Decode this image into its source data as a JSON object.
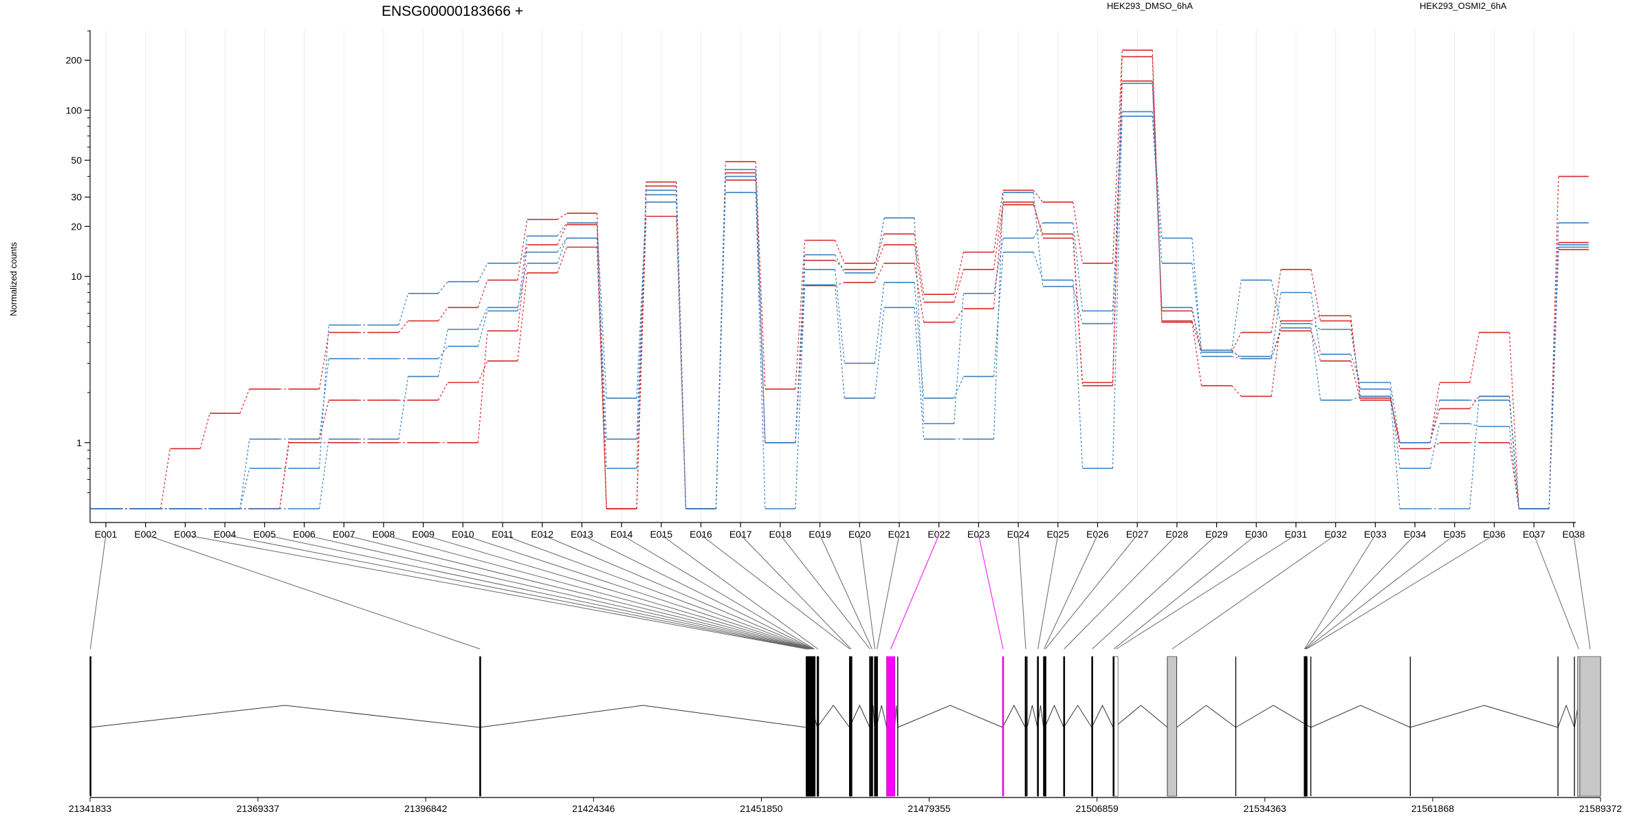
{
  "chart_data": {
    "type": "line",
    "title": "ENSG00000183666 +",
    "ylabel": "Normalized counts",
    "xlabel": "",
    "y_scale": "log",
    "y_ticks": [
      1,
      10,
      20,
      30,
      50,
      100,
      200
    ],
    "ylim": [
      0.4,
      300
    ],
    "categories": [
      "E001",
      "E002",
      "E003",
      "E004",
      "E005",
      "E006",
      "E007",
      "E008",
      "E009",
      "E010",
      "E011",
      "E012",
      "E013",
      "E014",
      "E015",
      "E016",
      "E017",
      "E018",
      "E019",
      "E020",
      "E021",
      "E022",
      "E023",
      "E024",
      "E025",
      "E026",
      "E027",
      "E028",
      "E029",
      "E030",
      "E031",
      "E032",
      "E033",
      "E034",
      "E035",
      "E036",
      "E037",
      "E038"
    ],
    "conditions": [
      {
        "label": "HEK293_DMSO_6hA",
        "color": "#d62728"
      },
      {
        "label": "HEK293_OSMI2_6hA",
        "color": "#3a7fc1"
      }
    ],
    "series": [
      {
        "condition": "HEK293_DMSO_6hA",
        "values": [
          0.4,
          0.4,
          0.92,
          1.5,
          2.1,
          2.1,
          4.6,
          4.6,
          5.4,
          6.5,
          9.5,
          22,
          24,
          0.4,
          37,
          0.4,
          49,
          2.1,
          16.5,
          12,
          18,
          7.8,
          14,
          33,
          28,
          12,
          230,
          5.4,
          3.5,
          4.6,
          11,
          5.4,
          1.9,
          0.92,
          1.0,
          1.0,
          0.4,
          40
        ]
      },
      {
        "condition": "HEK293_DMSO_6hA",
        "values": [
          0.4,
          0.4,
          0.4,
          0.4,
          0.4,
          1.0,
          1.0,
          1.0,
          1.0,
          1.0,
          4.7,
          15.5,
          20.5,
          0.4,
          35,
          0.4,
          42,
          1.0,
          12.5,
          11,
          15.5,
          7,
          11,
          28,
          17,
          2.2,
          210,
          5.3,
          2.2,
          1.9,
          5.4,
          5.8,
          1.85,
          1.0,
          2.3,
          4.6,
          0.4,
          16
        ]
      },
      {
        "condition": "HEK293_DMSO_6hA",
        "values": [
          0.4,
          0.4,
          0.4,
          0.4,
          0.4,
          1.05,
          1.8,
          1.8,
          1.8,
          2.3,
          3.1,
          10.5,
          15,
          0.4,
          23,
          0.4,
          38,
          1.0,
          8.8,
          9.2,
          12,
          5.3,
          6.4,
          27,
          18,
          2.3,
          150,
          6.2,
          3.6,
          3.2,
          4.7,
          3.1,
          1.8,
          1.0,
          1.6,
          1.9,
          0.4,
          14.5
        ]
      },
      {
        "condition": "HEK293_OSMI2_6hA",
        "values": [
          0.4,
          0.4,
          0.4,
          0.4,
          1.05,
          1.05,
          3.2,
          3.2,
          3.2,
          3.8,
          6.2,
          17.5,
          21,
          1.85,
          28,
          0.4,
          44,
          1.0,
          13.5,
          10.5,
          22.5,
          1.3,
          7.9,
          17,
          21,
          6.2,
          98,
          17,
          3.5,
          3.3,
          8,
          3.4,
          2.3,
          1.0,
          1.8,
          1.8,
          0.4,
          15.5
        ]
      },
      {
        "condition": "HEK293_OSMI2_6hA",
        "values": [
          0.4,
          0.4,
          0.4,
          0.4,
          0.7,
          0.7,
          5.1,
          5.1,
          7.9,
          9.3,
          12,
          14,
          17,
          1.05,
          31,
          0.4,
          40,
          1.0,
          11,
          3,
          9.2,
          1.85,
          2.5,
          14,
          9.5,
          0.7,
          92,
          12,
          3.6,
          9.5,
          5.2,
          4.8,
          2.1,
          0.7,
          1.3,
          1.25,
          0.4,
          15
        ]
      },
      {
        "condition": "HEK293_OSMI2_6hA",
        "values": [
          0.4,
          0.4,
          0.4,
          0.4,
          0.4,
          0.4,
          1.05,
          1.05,
          2.5,
          4.8,
          6.5,
          12,
          17,
          0.7,
          33,
          0.4,
          32,
          0.4,
          8.9,
          1.85,
          6.5,
          1.05,
          1.05,
          32,
          8.7,
          5.2,
          145,
          6.5,
          3.3,
          3.2,
          4.9,
          1.8,
          1.9,
          0.4,
          0.4,
          1.9,
          0.4,
          21
        ]
      }
    ],
    "gene_model": {
      "coordinate_ticks": [
        "21341833",
        "21369337",
        "21396842",
        "21424346",
        "21451850",
        "21479355",
        "21506859",
        "21534363",
        "21561868",
        "21589372"
      ],
      "xlim": [
        21341833,
        21589372
      ],
      "exon_starts": [
        21341833,
        21405700,
        21459200,
        21461000,
        21466300,
        21469600,
        21469900,
        21470400,
        21470700,
        21472400,
        21473700,
        21474200,
        21491400,
        21495100,
        21495400,
        21497100,
        21498100,
        21498300,
        21501400,
        21506000,
        21509500,
        21509700,
        21518400,
        21519900,
        21529600,
        21541900,
        21558200,
        21582400,
        21585100,
        21586300,
        21587100,
        21589372
      ],
      "highlight_color": "#ff00ff",
      "fill_color": "#c8c8c8",
      "exons": [
        {
          "label": "E001",
          "start": 21341833,
          "end": 21341900
        },
        {
          "label": "E002",
          "start": 21405700,
          "end": 21405780
        },
        {
          "label": "E003",
          "start": 21459200,
          "end": 21459300
        },
        {
          "label": "E004",
          "start": 21459300,
          "end": 21459420
        },
        {
          "label": "E005",
          "start": 21459420,
          "end": 21459530
        },
        {
          "label": "E006",
          "start": 21459530,
          "end": 21459640
        },
        {
          "label": "E007",
          "start": 21459640,
          "end": 21459760
        },
        {
          "label": "E008",
          "start": 21459760,
          "end": 21459880
        },
        {
          "label": "E009",
          "start": 21459880,
          "end": 21460000
        },
        {
          "label": "E010",
          "start": 21460000,
          "end": 21460120
        },
        {
          "label": "E011",
          "start": 21460120,
          "end": 21460240
        },
        {
          "label": "E012",
          "start": 21460240,
          "end": 21460360
        },
        {
          "label": "E013",
          "start": 21460360,
          "end": 21460500
        },
        {
          "label": "E014",
          "start": 21460500,
          "end": 21460640
        },
        {
          "label": "E015",
          "start": 21461000,
          "end": 21461250
        },
        {
          "label": "E016",
          "start": 21466300,
          "end": 21466400
        },
        {
          "label": "E017",
          "start": 21466400,
          "end": 21466700
        },
        {
          "label": "E018",
          "start": 21469600,
          "end": 21469700
        },
        {
          "label": "E019",
          "start": 21469900,
          "end": 21470100
        },
        {
          "label": "E020",
          "start": 21470400,
          "end": 21470500
        },
        {
          "label": "E021",
          "start": 21470700,
          "end": 21470900
        },
        {
          "label": "E022",
          "start": 21472400,
          "end": 21473700,
          "highlight": true
        },
        {
          "label": "E023",
          "start": 21491400,
          "end": 21491550,
          "highlight": true
        },
        {
          "label": "E024",
          "start": 21495100,
          "end": 21495250
        },
        {
          "label": "E025",
          "start": 21497100,
          "end": 21497230
        },
        {
          "label": "E026",
          "start": 21498100,
          "end": 21498240
        },
        {
          "label": "E027",
          "start": 21498300,
          "end": 21498500
        },
        {
          "label": "E028",
          "start": 21501400,
          "end": 21501500
        },
        {
          "label": "E029",
          "start": 21506000,
          "end": 21506150
        },
        {
          "label": "E030",
          "start": 21509500,
          "end": 21509700
        },
        {
          "label": "E031",
          "start": 21509700,
          "end": 21510300,
          "filled": "white"
        },
        {
          "label": "E032",
          "start": 21518400,
          "end": 21519900,
          "filled": "grey"
        },
        {
          "label": "E033",
          "start": 21540800,
          "end": 21540900
        },
        {
          "label": "E034",
          "start": 21540900,
          "end": 21541000
        },
        {
          "label": "E035",
          "start": 21541000,
          "end": 21541100
        },
        {
          "label": "E036",
          "start": 21541100,
          "end": 21541300
        },
        {
          "label": "E037",
          "start": 21585600,
          "end": 21586000,
          "filled": "grey"
        },
        {
          "label": "E038",
          "start": 21586000,
          "end": 21589372,
          "filled": "grey"
        }
      ]
    },
    "grid": true
  }
}
